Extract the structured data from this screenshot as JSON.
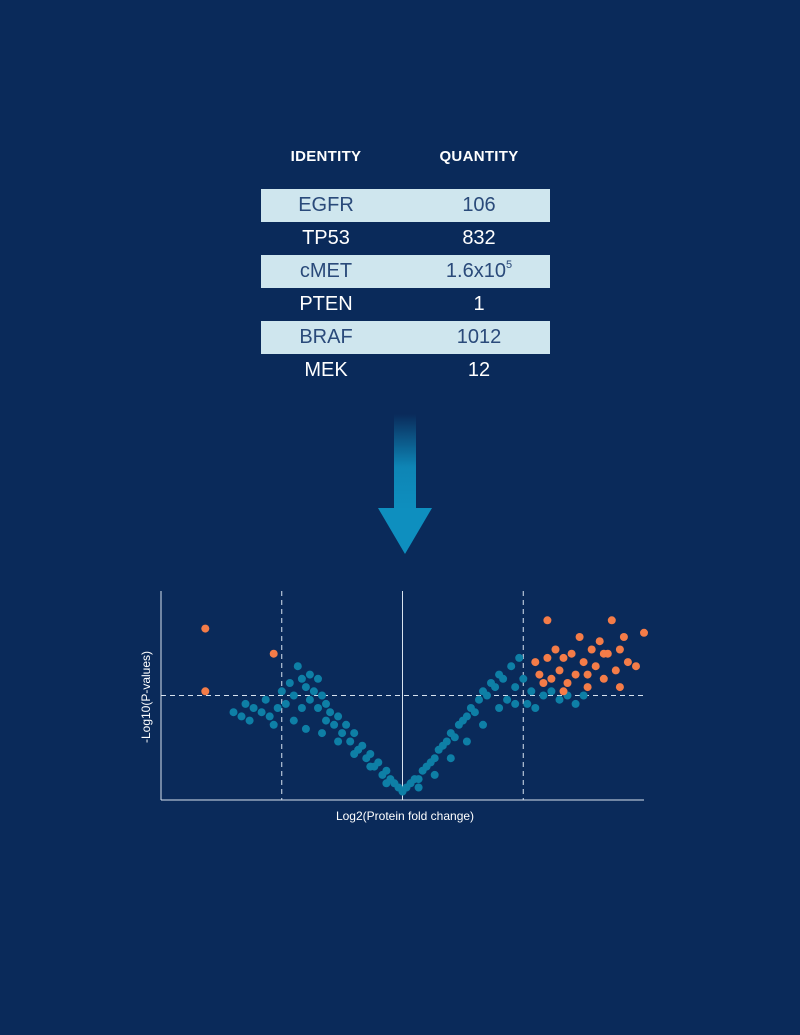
{
  "table": {
    "headers": {
      "identity": "IDENTITY",
      "quantity": "QUANTITY"
    },
    "rows": [
      {
        "identity": "EGFR",
        "quantity": "106",
        "sup": ""
      },
      {
        "identity": "TP53",
        "quantity": "832",
        "sup": ""
      },
      {
        "identity": "cMET",
        "quantity": "1.6x10",
        "sup": "5"
      },
      {
        "identity": "PTEN",
        "quantity": "1",
        "sup": ""
      },
      {
        "identity": "BRAF",
        "quantity": "1012",
        "sup": ""
      },
      {
        "identity": "MEK",
        "quantity": "12",
        "sup": ""
      }
    ]
  },
  "colors": {
    "background": "#0a2a5a",
    "row_shade": "#cfe6ee",
    "row_text_shaded": "#2a4a7a",
    "arrow": "#0e8fbf",
    "point_default": "#0e7fa6",
    "point_significant": "#f47c48",
    "axis": "#d8e3ef"
  },
  "chart_data": {
    "type": "scatter",
    "title": "",
    "xlabel": "Log2(Protein fold change)",
    "ylabel": "-Log10(P-values)",
    "xlim": [
      -6,
      6
    ],
    "ylim": [
      0,
      5
    ],
    "grid": false,
    "legend": "none",
    "thresholds": {
      "x": [
        -3,
        3
      ],
      "y": 2.5,
      "center_x": 0
    },
    "series": [
      {
        "category": "not-significant",
        "color": "#0e7fa6",
        "points": [
          [
            -4.2,
            2.1
          ],
          [
            -4.0,
            2.0
          ],
          [
            -3.9,
            2.3
          ],
          [
            -3.7,
            2.2
          ],
          [
            -3.5,
            2.1
          ],
          [
            -3.4,
            2.4
          ],
          [
            -3.3,
            2.0
          ],
          [
            -3.1,
            2.2
          ],
          [
            -3.0,
            2.6
          ],
          [
            -2.9,
            2.3
          ],
          [
            -2.8,
            2.8
          ],
          [
            -2.7,
            2.5
          ],
          [
            -2.6,
            3.2
          ],
          [
            -2.5,
            2.9
          ],
          [
            -2.5,
            2.2
          ],
          [
            -2.4,
            2.7
          ],
          [
            -2.3,
            3.0
          ],
          [
            -2.3,
            2.4
          ],
          [
            -2.2,
            2.6
          ],
          [
            -2.1,
            2.9
          ],
          [
            -2.1,
            2.2
          ],
          [
            -2.0,
            2.5
          ],
          [
            -1.9,
            2.3
          ],
          [
            -1.9,
            1.9
          ],
          [
            -1.8,
            2.1
          ],
          [
            -1.7,
            1.8
          ],
          [
            -1.6,
            2.0
          ],
          [
            -1.5,
            1.6
          ],
          [
            -1.4,
            1.8
          ],
          [
            -1.3,
            1.4
          ],
          [
            -1.2,
            1.6
          ],
          [
            -1.1,
            1.2
          ],
          [
            -1.0,
            1.3
          ],
          [
            -0.9,
            1.0
          ],
          [
            -0.8,
            1.1
          ],
          [
            -0.7,
            0.8
          ],
          [
            -0.6,
            0.9
          ],
          [
            -0.5,
            0.6
          ],
          [
            -0.4,
            0.7
          ],
          [
            -0.3,
            0.5
          ],
          [
            -0.2,
            0.4
          ],
          [
            -0.1,
            0.3
          ],
          [
            0.0,
            0.2
          ],
          [
            0.1,
            0.3
          ],
          [
            0.2,
            0.4
          ],
          [
            0.3,
            0.5
          ],
          [
            0.4,
            0.5
          ],
          [
            0.5,
            0.7
          ],
          [
            0.6,
            0.8
          ],
          [
            0.7,
            0.9
          ],
          [
            0.8,
            1.0
          ],
          [
            0.9,
            1.2
          ],
          [
            1.0,
            1.3
          ],
          [
            1.1,
            1.4
          ],
          [
            1.2,
            1.6
          ],
          [
            1.3,
            1.5
          ],
          [
            1.4,
            1.8
          ],
          [
            1.5,
            1.9
          ],
          [
            1.6,
            2.0
          ],
          [
            1.7,
            2.2
          ],
          [
            1.8,
            2.1
          ],
          [
            1.9,
            2.4
          ],
          [
            2.0,
            2.6
          ],
          [
            2.1,
            2.5
          ],
          [
            2.2,
            2.8
          ],
          [
            2.3,
            2.7
          ],
          [
            2.4,
            3.0
          ],
          [
            2.5,
            2.9
          ],
          [
            2.6,
            2.4
          ],
          [
            2.7,
            3.2
          ],
          [
            2.8,
            2.7
          ],
          [
            2.9,
            3.4
          ],
          [
            3.0,
            2.9
          ],
          [
            3.1,
            2.3
          ],
          [
            3.2,
            2.6
          ],
          [
            3.3,
            2.2
          ],
          [
            3.5,
            2.5
          ],
          [
            3.7,
            2.6
          ],
          [
            3.9,
            2.4
          ],
          [
            4.1,
            2.5
          ],
          [
            4.3,
            2.3
          ],
          [
            4.5,
            2.5
          ],
          [
            -3.8,
            1.9
          ],
          [
            -3.2,
            1.8
          ],
          [
            -2.7,
            1.9
          ],
          [
            -2.4,
            1.7
          ],
          [
            -2.0,
            1.6
          ],
          [
            -1.6,
            1.4
          ],
          [
            -1.2,
            1.1
          ],
          [
            -0.8,
            0.8
          ],
          [
            -0.4,
            0.4
          ],
          [
            0.4,
            0.3
          ],
          [
            0.8,
            0.6
          ],
          [
            1.2,
            1.0
          ],
          [
            1.6,
            1.4
          ],
          [
            2.0,
            1.8
          ],
          [
            2.4,
            2.2
          ],
          [
            2.8,
            2.3
          ]
        ]
      },
      {
        "category": "significant",
        "color": "#f47c48",
        "points": [
          [
            -4.9,
            4.1
          ],
          [
            -3.2,
            3.5
          ],
          [
            -4.9,
            2.6
          ],
          [
            3.3,
            3.3
          ],
          [
            3.4,
            3.0
          ],
          [
            3.5,
            2.8
          ],
          [
            3.6,
            3.4
          ],
          [
            3.7,
            2.9
          ],
          [
            3.8,
            3.6
          ],
          [
            3.9,
            3.1
          ],
          [
            4.0,
            3.4
          ],
          [
            4.1,
            2.8
          ],
          [
            4.2,
            3.5
          ],
          [
            4.3,
            3.0
          ],
          [
            4.4,
            3.9
          ],
          [
            4.5,
            3.3
          ],
          [
            4.6,
            2.7
          ],
          [
            4.7,
            3.6
          ],
          [
            4.8,
            3.2
          ],
          [
            4.9,
            3.8
          ],
          [
            5.0,
            2.9
          ],
          [
            5.1,
            3.5
          ],
          [
            5.2,
            4.3
          ],
          [
            5.3,
            3.1
          ],
          [
            5.4,
            3.6
          ],
          [
            5.5,
            3.9
          ],
          [
            5.6,
            3.3
          ],
          [
            5.8,
            3.2
          ],
          [
            6.0,
            4.0
          ],
          [
            3.6,
            4.3
          ],
          [
            4.0,
            2.6
          ],
          [
            4.6,
            3.0
          ],
          [
            5.0,
            3.5
          ],
          [
            5.4,
            2.7
          ]
        ]
      }
    ]
  }
}
